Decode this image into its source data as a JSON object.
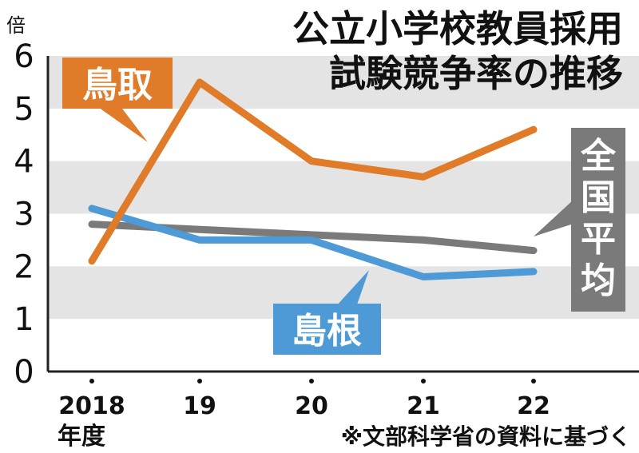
{
  "chart_data": {
    "type": "line",
    "title": "公立小学校教員採用試験競争率の推移",
    "title_lines": [
      "公立小学校教員採用",
      "試験競争率の推移"
    ],
    "unit": "倍",
    "x": [
      "2018",
      "19",
      "20",
      "21",
      "22"
    ],
    "x_sub": "年度",
    "ylim": [
      0,
      6
    ],
    "yticks": [
      "0",
      "1",
      "2",
      "3",
      "4",
      "5",
      "6"
    ],
    "series": [
      {
        "name": "鳥取",
        "color": "#e07b2a",
        "values": [
          2.1,
          5.5,
          4.0,
          3.7,
          4.6
        ]
      },
      {
        "name": "全国平均",
        "color": "#7a7a7a",
        "values": [
          2.8,
          2.7,
          2.6,
          2.5,
          2.3
        ]
      },
      {
        "name": "島根",
        "color": "#4d9ad6",
        "values": [
          3.1,
          2.5,
          2.5,
          1.8,
          1.9
        ]
      }
    ],
    "source": "※文部科学省の資料に基づく",
    "grid": "alternating bands"
  }
}
